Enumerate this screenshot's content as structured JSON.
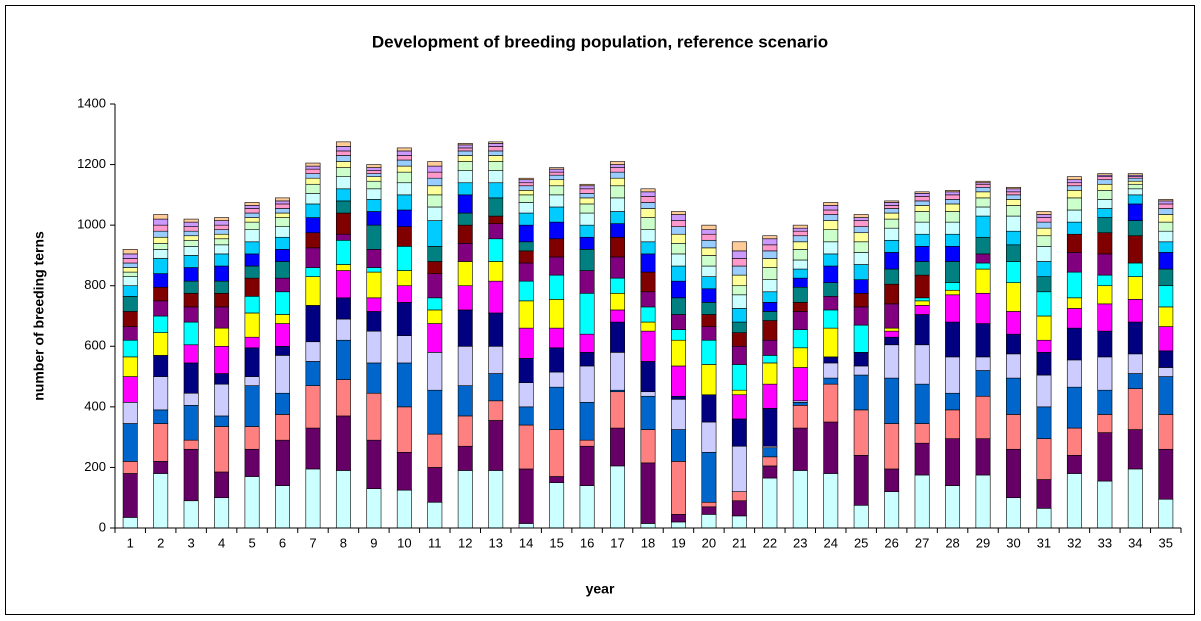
{
  "chart_data": {
    "type": "stacked_bar",
    "title": "Development of breeding population, reference scenario",
    "x_label": "year",
    "y_label": "number of breeding terns",
    "categories": [
      "1",
      "2",
      "3",
      "4",
      "5",
      "6",
      "7",
      "8",
      "9",
      "10",
      "11",
      "12",
      "13",
      "14",
      "15",
      "16",
      "17",
      "18",
      "19",
      "20",
      "21",
      "22",
      "23",
      "24",
      "25",
      "26",
      "27",
      "28",
      "29",
      "30",
      "31",
      "32",
      "33",
      "34",
      "35"
    ],
    "ylim": [
      0,
      1400
    ],
    "yticks": [
      0,
      200,
      400,
      600,
      800,
      1000,
      1200,
      1400
    ],
    "grid": false,
    "series": [
      {
        "color": "#CCFFFF",
        "values": [
          35,
          180,
          90,
          100,
          170,
          140,
          195,
          190,
          130,
          125,
          85,
          190,
          190,
          15,
          150,
          140,
          205,
          15,
          20,
          45,
          40,
          165,
          190,
          180,
          75,
          120,
          175,
          140,
          175,
          100,
          65,
          180,
          155,
          195,
          95
        ]
      },
      {
        "color": "#660066",
        "values": [
          145,
          40,
          170,
          85,
          90,
          150,
          135,
          180,
          160,
          125,
          115,
          80,
          165,
          180,
          20,
          130,
          125,
          200,
          25,
          25,
          50,
          40,
          140,
          170,
          165,
          75,
          105,
          155,
          120,
          160,
          95,
          60,
          160,
          130,
          165
        ]
      },
      {
        "color": "#FF8080",
        "values": [
          40,
          125,
          30,
          150,
          75,
          85,
          140,
          120,
          155,
          150,
          110,
          100,
          65,
          145,
          155,
          20,
          120,
          110,
          175,
          15,
          30,
          30,
          75,
          125,
          150,
          150,
          65,
          95,
          140,
          115,
          135,
          90,
          60,
          135,
          115
        ]
      },
      {
        "color": "#0066CC",
        "values": [
          125,
          45,
          115,
          35,
          135,
          70,
          80,
          130,
          100,
          145,
          145,
          100,
          90,
          60,
          140,
          125,
          5,
          110,
          105,
          165,
          0,
          30,
          10,
          20,
          115,
          150,
          130,
          55,
          85,
          120,
          105,
          135,
          80,
          50,
          125
        ]
      },
      {
        "color": "#CCCCFF",
        "values": [
          70,
          110,
          40,
          105,
          30,
          125,
          65,
          70,
          105,
          90,
          125,
          130,
          90,
          80,
          50,
          120,
          125,
          15,
          100,
          100,
          150,
          5,
          5,
          50,
          30,
          110,
          130,
          120,
          45,
          80,
          105,
          90,
          110,
          65,
          30
        ]
      },
      {
        "color": "#000080",
        "values": [
          0,
          70,
          100,
          35,
          95,
          30,
          120,
          70,
          65,
          110,
          0,
          120,
          110,
          80,
          80,
          45,
          100,
          100,
          10,
          90,
          90,
          125,
          0,
          20,
          45,
          25,
          100,
          115,
          110,
          65,
          75,
          105,
          85,
          105,
          55
        ]
      },
      {
        "color": "#FF00FF",
        "values": [
          85,
          0,
          60,
          90,
          35,
          75,
          0,
          90,
          45,
          55,
          95,
          80,
          105,
          100,
          65,
          60,
          40,
          100,
          100,
          0,
          80,
          80,
          110,
          0,
          0,
          20,
          30,
          90,
          100,
          75,
          40,
          65,
          90,
          75,
          80
        ]
      },
      {
        "color": "#FFFF00",
        "values": [
          65,
          75,
          0,
          60,
          80,
          30,
          95,
          20,
          85,
          50,
          45,
          80,
          65,
          90,
          95,
          0,
          55,
          30,
          85,
          100,
          15,
          70,
          65,
          95,
          0,
          10,
          15,
          15,
          80,
          95,
          80,
          35,
          60,
          75,
          65
        ]
      },
      {
        "color": "#00FFFF",
        "values": [
          55,
          55,
          75,
          0,
          55,
          75,
          30,
          80,
          15,
          80,
          40,
          0,
          75,
          65,
          80,
          135,
          50,
          50,
          35,
          80,
          85,
          25,
          60,
          60,
          90,
          0,
          10,
          25,
          20,
          70,
          80,
          85,
          35,
          45,
          70
        ]
      },
      {
        "color": "#800080",
        "values": [
          45,
          50,
          50,
          70,
          0,
          45,
          65,
          20,
          60,
          0,
          80,
          60,
          50,
          60,
          60,
          75,
          70,
          50,
          50,
          45,
          60,
          50,
          60,
          45,
          60,
          80,
          0,
          0,
          30,
          0,
          0,
          65,
          70,
          0,
          0
        ]
      },
      {
        "color": "#800000",
        "values": [
          50,
          45,
          45,
          45,
          60,
          0,
          50,
          70,
          0,
          65,
          40,
          60,
          25,
          40,
          60,
          0,
          65,
          65,
          0,
          40,
          45,
          65,
          30,
          0,
          45,
          65,
          75,
          0,
          0,
          0,
          0,
          60,
          70,
          90,
          0
        ]
      },
      {
        "color": "#008080",
        "values": [
          50,
          0,
          40,
          40,
          40,
          55,
          0,
          40,
          80,
          0,
          50,
          40,
          60,
          30,
          0,
          70,
          0,
          0,
          55,
          40,
          35,
          30,
          50,
          45,
          0,
          50,
          45,
          70,
          55,
          55,
          50,
          0,
          50,
          50,
          55
        ]
      },
      {
        "color": "#0000FF",
        "values": [
          0,
          45,
          45,
          50,
          40,
          40,
          50,
          0,
          45,
          55,
          0,
          60,
          0,
          55,
          55,
          40,
          45,
          60,
          55,
          45,
          0,
          30,
          30,
          55,
          45,
          55,
          50,
          50,
          0,
          0,
          0,
          0,
          0,
          55,
          55
        ]
      },
      {
        "color": "#00CCFF",
        "values": [
          35,
          50,
          40,
          40,
          40,
          40,
          45,
          40,
          40,
          50,
          85,
          40,
          50,
          40,
          50,
          40,
          40,
          40,
          50,
          40,
          45,
          35,
          30,
          40,
          50,
          40,
          40,
          40,
          70,
          45,
          50,
          40,
          30,
          30,
          35
        ]
      },
      {
        "color": "#CCFFFF",
        "values": [
          30,
          30,
          30,
          30,
          40,
          35,
          35,
          40,
          35,
          40,
          45,
          40,
          40,
          35,
          40,
          40,
          45,
          40,
          40,
          35,
          45,
          40,
          30,
          40,
          40,
          40,
          40,
          40,
          30,
          50,
          50,
          40,
          30,
          20,
          35
        ]
      },
      {
        "color": "#CCFFCC",
        "values": [
          15,
          20,
          20,
          20,
          25,
          30,
          30,
          30,
          25,
          35,
          40,
          30,
          30,
          25,
          30,
          30,
          40,
          40,
          35,
          35,
          30,
          40,
          35,
          40,
          35,
          30,
          35,
          35,
          30,
          35,
          35,
          40,
          30,
          15,
          30
        ]
      },
      {
        "color": "#FFFF99",
        "values": [
          15,
          20,
          15,
          15,
          15,
          15,
          20,
          20,
          15,
          20,
          30,
          20,
          20,
          15,
          20,
          20,
          25,
          30,
          30,
          25,
          35,
          30,
          25,
          30,
          30,
          20,
          20,
          25,
          20,
          20,
          25,
          25,
          20,
          10,
          25
        ]
      },
      {
        "color": "#99CCFF",
        "values": [
          15,
          20,
          15,
          15,
          15,
          15,
          15,
          20,
          10,
          20,
          25,
          15,
          15,
          15,
          15,
          15,
          20,
          20,
          25,
          25,
          30,
          25,
          20,
          20,
          20,
          15,
          15,
          15,
          15,
          15,
          20,
          15,
          15,
          10,
          20
        ]
      },
      {
        "color": "#FF99CC",
        "values": [
          15,
          20,
          15,
          15,
          15,
          15,
          15,
          15,
          10,
          15,
          20,
          10,
          15,
          10,
          10,
          15,
          15,
          20,
          20,
          20,
          25,
          20,
          15,
          15,
          20,
          10,
          15,
          15,
          10,
          10,
          15,
          10,
          10,
          5,
          15
        ]
      },
      {
        "color": "#CC99FF",
        "values": [
          15,
          20,
          15,
          15,
          10,
          10,
          10,
          15,
          10,
          15,
          20,
          10,
          10,
          10,
          10,
          10,
          10,
          15,
          20,
          15,
          25,
          20,
          10,
          15,
          10,
          10,
          10,
          10,
          5,
          10,
          10,
          10,
          5,
          5,
          10
        ]
      },
      {
        "color": "#FFCC99",
        "values": [
          15,
          15,
          10,
          10,
          10,
          10,
          10,
          15,
          10,
          10,
          15,
          5,
          5,
          5,
          5,
          5,
          10,
          10,
          10,
          15,
          30,
          10,
          10,
          10,
          10,
          5,
          5,
          5,
          5,
          5,
          10,
          10,
          5,
          5,
          5
        ]
      }
    ]
  }
}
